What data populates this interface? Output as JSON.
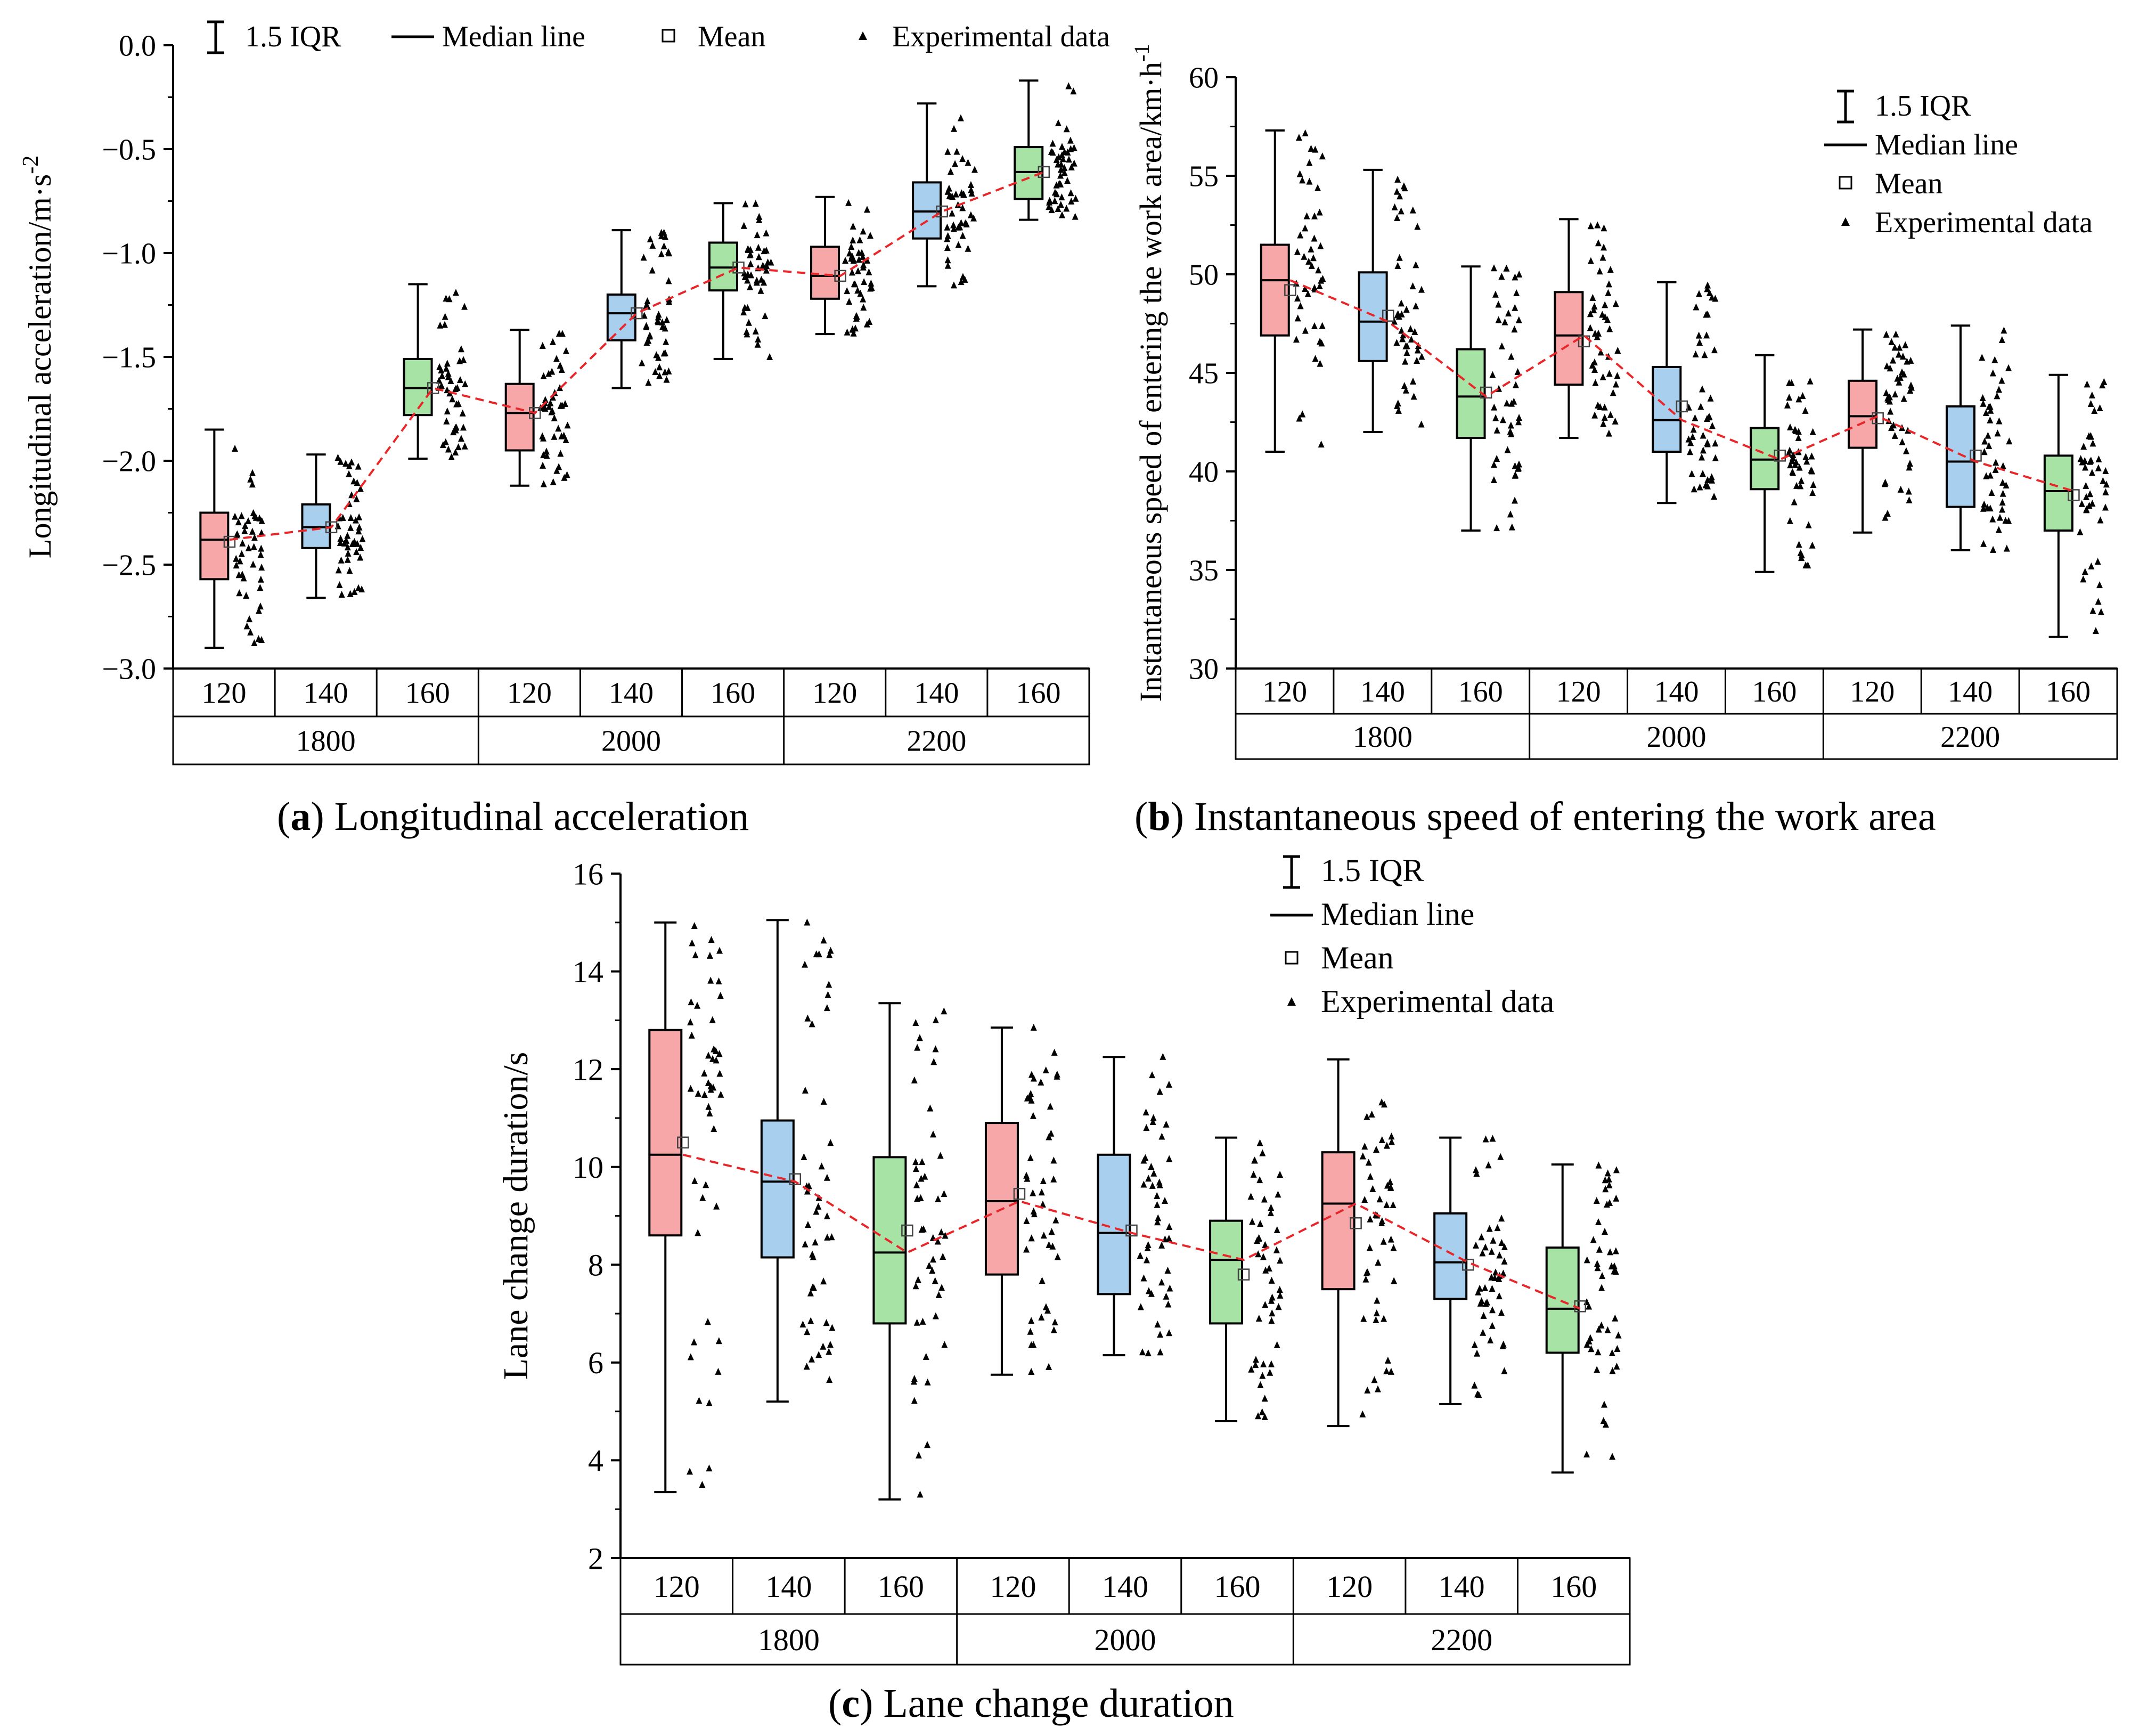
{
  "legend": {
    "iqr": "1.5 IQR",
    "median": "Median line",
    "mean": "Mean",
    "data": "Experimental data"
  },
  "colors": {
    "box_fills": [
      "#f8a7a9",
      "#a9cfee",
      "#a6e3a5"
    ],
    "trend": "#e8262a",
    "marker": "#000000",
    "axis": "#000000"
  },
  "captions": {
    "a": {
      "letter": "a",
      "text": "Longitudinal acceleration"
    },
    "b": {
      "letter": "b",
      "text": "Instantaneous speed of entering the work area"
    },
    "c": {
      "letter": "c",
      "text": "Lane change duration"
    }
  },
  "chart_data": [
    {
      "id": "a",
      "type": "box",
      "ylabel": "Longitudinal acceleration/m·s",
      "ylabel_sup": "-2",
      "ylim": [
        -3.0,
        0.0
      ],
      "yticks": [
        -3.0,
        -2.5,
        -2.0,
        -1.5,
        -1.0,
        -0.5,
        0.0
      ],
      "ytick_labels": [
        "−3.0",
        "−2.5",
        "−2.0",
        "−1.5",
        "−1.0",
        "−0.5",
        "0.0"
      ],
      "group_labels": [
        "1800",
        "2000",
        "2200"
      ],
      "sub_labels": [
        "120",
        "140",
        "160"
      ],
      "legend_position": "top",
      "boxes": [
        {
          "group": "1800",
          "sub": "120",
          "wlo": -2.9,
          "q1": -2.57,
          "med": -2.38,
          "q3": -2.25,
          "whi": -1.85,
          "mean": -2.39,
          "pts": 46
        },
        {
          "group": "1800",
          "sub": "140",
          "wlo": -2.66,
          "q1": -2.42,
          "med": -2.32,
          "q3": -2.21,
          "whi": -1.97,
          "mean": -2.32,
          "pts": 46
        },
        {
          "group": "1800",
          "sub": "160",
          "wlo": -1.99,
          "q1": -1.78,
          "med": -1.65,
          "q3": -1.51,
          "whi": -1.15,
          "mean": -1.65,
          "pts": 46
        },
        {
          "group": "2000",
          "sub": "120",
          "wlo": -2.12,
          "q1": -1.95,
          "med": -1.77,
          "q3": -1.63,
          "whi": -1.37,
          "mean": -1.77,
          "pts": 46
        },
        {
          "group": "2000",
          "sub": "140",
          "wlo": -1.65,
          "q1": -1.42,
          "med": -1.29,
          "q3": -1.2,
          "whi": -0.89,
          "mean": -1.29,
          "pts": 46
        },
        {
          "group": "2000",
          "sub": "160",
          "wlo": -1.51,
          "q1": -1.18,
          "med": -1.07,
          "q3": -0.95,
          "whi": -0.76,
          "mean": -1.07,
          "pts": 46
        },
        {
          "group": "2200",
          "sub": "120",
          "wlo": -1.39,
          "q1": -1.22,
          "med": -1.11,
          "q3": -0.97,
          "whi": -0.73,
          "mean": -1.11,
          "pts": 46
        },
        {
          "group": "2200",
          "sub": "140",
          "wlo": -1.16,
          "q1": -0.93,
          "med": -0.8,
          "q3": -0.66,
          "whi": -0.28,
          "mean": -0.8,
          "pts": 46
        },
        {
          "group": "2200",
          "sub": "160",
          "wlo": -0.84,
          "q1": -0.74,
          "med": -0.61,
          "q3": -0.49,
          "whi": -0.17,
          "mean": -0.61,
          "pts": 46
        }
      ]
    },
    {
      "id": "b",
      "type": "box",
      "ylabel": "Instantaneous speed of entering the work area/km·h",
      "ylabel_sup": "-1",
      "ylim": [
        30,
        60
      ],
      "yticks": [
        30,
        35,
        40,
        45,
        50,
        55,
        60
      ],
      "ytick_labels": [
        "30",
        "35",
        "40",
        "45",
        "50",
        "55",
        "60"
      ],
      "group_labels": [
        "1800",
        "2000",
        "2200"
      ],
      "sub_labels": [
        "120",
        "140",
        "160"
      ],
      "legend_position": "top-right",
      "boxes": [
        {
          "group": "1800",
          "sub": "120",
          "wlo": 41.0,
          "q1": 46.9,
          "med": 49.7,
          "q3": 51.5,
          "whi": 57.3,
          "mean": 49.2,
          "pts": 46
        },
        {
          "group": "1800",
          "sub": "140",
          "wlo": 42.0,
          "q1": 45.6,
          "med": 47.6,
          "q3": 50.1,
          "whi": 55.3,
          "mean": 47.9,
          "pts": 46
        },
        {
          "group": "1800",
          "sub": "160",
          "wlo": 37.0,
          "q1": 41.7,
          "med": 43.8,
          "q3": 46.2,
          "whi": 50.4,
          "mean": 44.0,
          "pts": 46
        },
        {
          "group": "2000",
          "sub": "120",
          "wlo": 41.7,
          "q1": 44.4,
          "med": 46.9,
          "q3": 49.1,
          "whi": 52.8,
          "mean": 46.6,
          "pts": 46
        },
        {
          "group": "2000",
          "sub": "140",
          "wlo": 38.4,
          "q1": 41.0,
          "med": 42.6,
          "q3": 45.3,
          "whi": 49.6,
          "mean": 43.3,
          "pts": 46
        },
        {
          "group": "2000",
          "sub": "160",
          "wlo": 34.9,
          "q1": 39.1,
          "med": 40.6,
          "q3": 42.2,
          "whi": 45.9,
          "mean": 40.8,
          "pts": 46
        },
        {
          "group": "2200",
          "sub": "120",
          "wlo": 36.9,
          "q1": 41.2,
          "med": 42.8,
          "q3": 44.6,
          "whi": 47.2,
          "mean": 42.7,
          "pts": 46
        },
        {
          "group": "2200",
          "sub": "140",
          "wlo": 36.0,
          "q1": 38.2,
          "med": 40.5,
          "q3": 43.3,
          "whi": 47.4,
          "mean": 40.8,
          "pts": 46
        },
        {
          "group": "2200",
          "sub": "160",
          "wlo": 31.6,
          "q1": 37.0,
          "med": 39.0,
          "q3": 40.8,
          "whi": 44.9,
          "mean": 38.8,
          "pts": 46
        }
      ]
    },
    {
      "id": "c",
      "type": "box",
      "ylabel": "Lane change duration/s",
      "ylabel_sup": "",
      "ylim": [
        2,
        16
      ],
      "yticks": [
        2,
        4,
        6,
        8,
        10,
        12,
        14,
        16
      ],
      "ytick_labels": [
        "2",
        "4",
        "6",
        "8",
        "10",
        "12",
        "14",
        "16"
      ],
      "group_labels": [
        "1800",
        "2000",
        "2200"
      ],
      "sub_labels": [
        "120",
        "140",
        "160"
      ],
      "legend_position": "top-right",
      "boxes": [
        {
          "group": "1800",
          "sub": "120",
          "wlo": 3.35,
          "q1": 8.6,
          "med": 10.25,
          "q3": 12.8,
          "whi": 15.0,
          "mean": 10.5,
          "pts": 48
        },
        {
          "group": "1800",
          "sub": "140",
          "wlo": 5.2,
          "q1": 8.15,
          "med": 9.7,
          "q3": 10.95,
          "whi": 15.05,
          "mean": 9.75,
          "pts": 48
        },
        {
          "group": "1800",
          "sub": "160",
          "wlo": 3.2,
          "q1": 6.8,
          "med": 8.25,
          "q3": 10.2,
          "whi": 13.35,
          "mean": 8.7,
          "pts": 48
        },
        {
          "group": "2000",
          "sub": "120",
          "wlo": 5.75,
          "q1": 7.8,
          "med": 9.3,
          "q3": 10.9,
          "whi": 12.85,
          "mean": 9.45,
          "pts": 48
        },
        {
          "group": "2000",
          "sub": "140",
          "wlo": 6.15,
          "q1": 7.4,
          "med": 8.65,
          "q3": 10.25,
          "whi": 12.25,
          "mean": 8.7,
          "pts": 48
        },
        {
          "group": "2000",
          "sub": "160",
          "wlo": 4.8,
          "q1": 6.8,
          "med": 8.1,
          "q3": 8.9,
          "whi": 10.6,
          "mean": 7.8,
          "pts": 48
        },
        {
          "group": "2200",
          "sub": "120",
          "wlo": 4.7,
          "q1": 7.5,
          "med": 9.25,
          "q3": 10.3,
          "whi": 12.2,
          "mean": 8.85,
          "pts": 48
        },
        {
          "group": "2200",
          "sub": "140",
          "wlo": 5.15,
          "q1": 7.3,
          "med": 8.05,
          "q3": 9.05,
          "whi": 10.6,
          "mean": 8.0,
          "pts": 48
        },
        {
          "group": "2200",
          "sub": "160",
          "wlo": 3.75,
          "q1": 6.2,
          "med": 7.1,
          "q3": 8.35,
          "whi": 10.05,
          "mean": 7.15,
          "pts": 48
        }
      ]
    }
  ]
}
